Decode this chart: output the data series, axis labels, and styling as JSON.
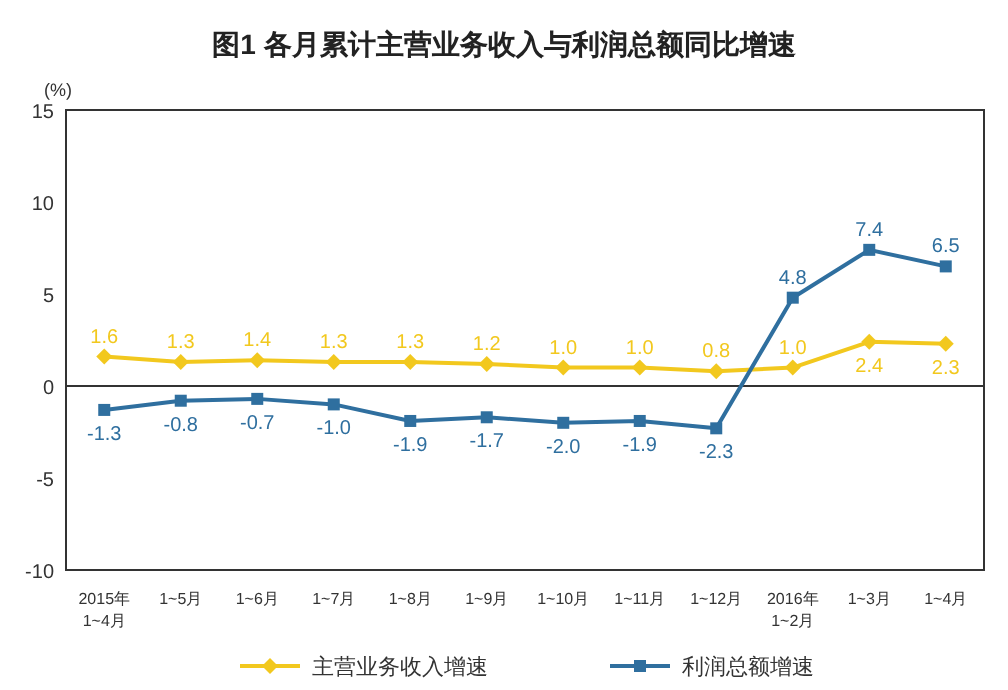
{
  "chart_data": {
    "type": "line",
    "title": "图1  各月累计主营业务收入与利润总额同比增速",
    "ylabel": "(%)",
    "categories": [
      "2015年\n1~4月",
      "1~5月",
      "1~6月",
      "1~7月",
      "1~8月",
      "1~9月",
      "1~10月",
      "1~11月",
      "1~12月",
      "2016年\n1~2月",
      "1~3月",
      "1~4月"
    ],
    "series": [
      {
        "name": "主营业务收入增速",
        "color": "#f2c81e",
        "marker": "diamond",
        "values": [
          1.6,
          1.3,
          1.4,
          1.3,
          1.3,
          1.2,
          1.0,
          1.0,
          0.8,
          1.0,
          2.4,
          2.3
        ],
        "value_labels": [
          "1.6",
          "1.3",
          "1.4",
          "1.3",
          "1.3",
          "1.2",
          "1.0",
          "1.0",
          "0.8",
          "1.0",
          "2.4",
          "2.3"
        ]
      },
      {
        "name": "利润总额增速",
        "color": "#2f6f9f",
        "marker": "square",
        "values": [
          -1.3,
          -0.8,
          -0.7,
          -1.0,
          -1.9,
          -1.7,
          -2.0,
          -1.9,
          -2.3,
          4.8,
          7.4,
          6.5
        ],
        "value_labels": [
          "-1.3",
          "-0.8",
          "-0.7",
          "-1.0",
          "-1.9",
          "-1.7",
          "-2.0",
          "-1.9",
          "-2.3",
          "4.8",
          "7.4",
          "6.5"
        ]
      }
    ],
    "ylim": [
      -10,
      15
    ],
    "yticks": [
      -10,
      -5,
      0,
      5,
      10,
      15
    ],
    "legend": "bottom"
  }
}
